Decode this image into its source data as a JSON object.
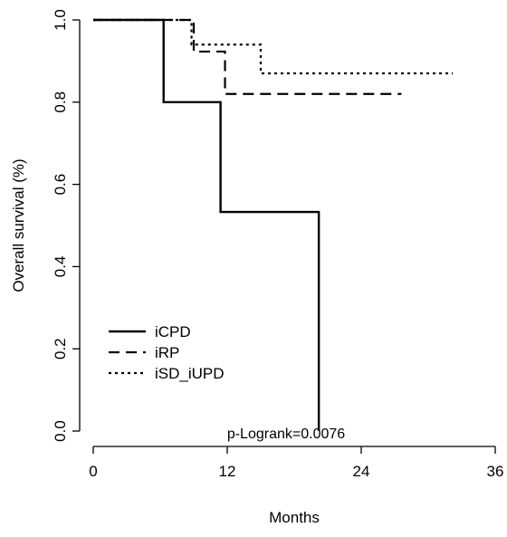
{
  "chart_data": {
    "type": "line",
    "title": "",
    "xlabel": "Months",
    "ylabel": "Overall survival (%)",
    "xlim": [
      0,
      36
    ],
    "ylim": [
      0,
      1
    ],
    "x_ticks": [
      0,
      12,
      24,
      36
    ],
    "y_ticks": [
      "0.0",
      "0.2",
      "0.4",
      "0.6",
      "0.8",
      "1.0"
    ],
    "grid": false,
    "legend_position": "bottom-left",
    "annotation": "p-Logrank=0.0076",
    "series": [
      {
        "name": "iCPD",
        "dash": "solid",
        "steps": [
          [
            0,
            1.0
          ],
          [
            6.3,
            0.8
          ],
          [
            11.4,
            0.533
          ],
          [
            20.2,
            0.0
          ]
        ]
      },
      {
        "name": "iRP",
        "dash": "dashed",
        "steps": [
          [
            0,
            1.0
          ],
          [
            9.0,
            0.923
          ],
          [
            11.8,
            0.82
          ]
        ],
        "end_x": 27.6
      },
      {
        "name": "iSD_iUPD",
        "dash": "dotted",
        "steps": [
          [
            0,
            1.0
          ],
          [
            8.8,
            0.94
          ],
          [
            15.0,
            0.87
          ]
        ],
        "end_x": 32.2
      }
    ]
  }
}
